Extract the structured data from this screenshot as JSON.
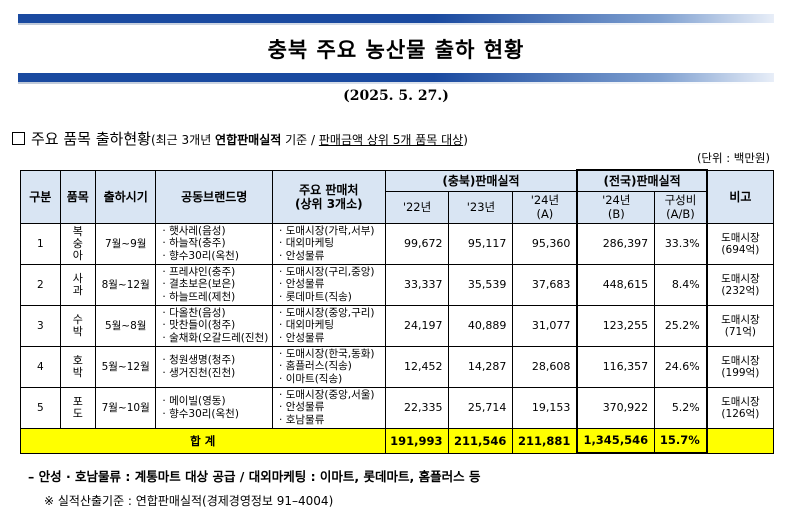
{
  "title": "충북 주요 농산물 출하 현황",
  "date": "(2025. 5. 27.)",
  "section": {
    "heading": "주요 품목 출하현황",
    "paren_open": "(최근 3개년 ",
    "paren_bold": "연합판매실적",
    "paren_mid": " 기준 / ",
    "paren_underline": "판매금액 상위 5개 품목 대상",
    "paren_close": ")"
  },
  "unit": "(단위 : 백만원)",
  "header": {
    "col_gubun": "구분",
    "col_item": "품목",
    "col_period": "출하시기",
    "col_brand": "공동브랜드명",
    "col_buyer": "주요 판매처\n(상위 3개소)",
    "col_chungbuk": "(충북)판매실적",
    "col_national": "(전국)판매실적",
    "col_note": "비고",
    "y22": "'22년",
    "y23": "'23년",
    "y24a": "'24년\n(A)",
    "y24b": "'24년\n(B)",
    "ratio": "구성비\n(A/B)"
  },
  "rows": [
    {
      "no": "1",
      "item": "복\n숭\n아",
      "period": "7월~9월",
      "brands": "· 햇사레(음성)\n· 하늘작(충주)\n· 향수30리(옥천)",
      "buyers": "· 도매시장(가락,서부)\n· 대외마케팅\n· 안성물류",
      "y22": "99,672",
      "y23": "95,117",
      "y24a": "95,360",
      "y24b": "286,397",
      "ratio": "33.3%",
      "note": "도매시장\n(694억)"
    },
    {
      "no": "2",
      "item": "사\n과",
      "period": "8월~12월",
      "brands": "· 프레샤인(충주)\n· 결초보은(보은)\n· 하늘뜨레(제천)",
      "buyers": "· 도매시장(구리,중앙)\n· 안성물류\n· 롯데마트(직송)",
      "y22": "33,337",
      "y23": "35,539",
      "y24a": "37,683",
      "y24b": "448,615",
      "ratio": "8.4%",
      "note": "도매시장\n(232억)"
    },
    {
      "no": "3",
      "item": "수\n박",
      "period": "5월~8월",
      "brands": "· 다올찬(음성)\n· 맛찬들이(청주)\n· 술채화(오갈드레(진천)",
      "buyers": "· 도매시장(중앙,구리)\n· 대외마케팅\n· 안성물류",
      "y22": "24,197",
      "y23": "40,889",
      "y24a": "31,077",
      "y24b": "123,255",
      "ratio": "25.2%",
      "note": "도매시장\n(71억)"
    },
    {
      "no": "4",
      "item": "호\n박",
      "period": "5월~12월",
      "brands": "· 청원생명(청주)\n· 생거진천(진천)",
      "buyers": "· 도매시장(한국,동화)\n· 홈플러스(직송)\n· 이마트(직송)",
      "y22": "12,452",
      "y23": "14,287",
      "y24a": "28,608",
      "y24b": "116,357",
      "ratio": "24.6%",
      "note": "도매시장\n(199억)"
    },
    {
      "no": "5",
      "item": "포\n도",
      "period": "7월~10월",
      "brands": "· 메이빌(영동)\n· 향수30리(옥천)",
      "buyers": "· 도매시장(중앙,서울)\n· 안성물류\n· 호남물류",
      "y22": "22,335",
      "y23": "25,714",
      "y24a": "19,153",
      "y24b": "370,922",
      "ratio": "5.2%",
      "note": "도매시장\n(126억)"
    }
  ],
  "total": {
    "label": "합 계",
    "y22": "191,993",
    "y23": "211,546",
    "y24a": "211,881",
    "y24b": "1,345,546",
    "ratio": "15.7%"
  },
  "footnote1": "– 안성 · 호남물류 : 계통마트 대상 공급 / 대외마케팅 : 이마트, 롯데마트, 홈플러스 등",
  "footnote2": "※ 실적산출기준 : 연합판매실적(경제경영정보 91–4004)"
}
